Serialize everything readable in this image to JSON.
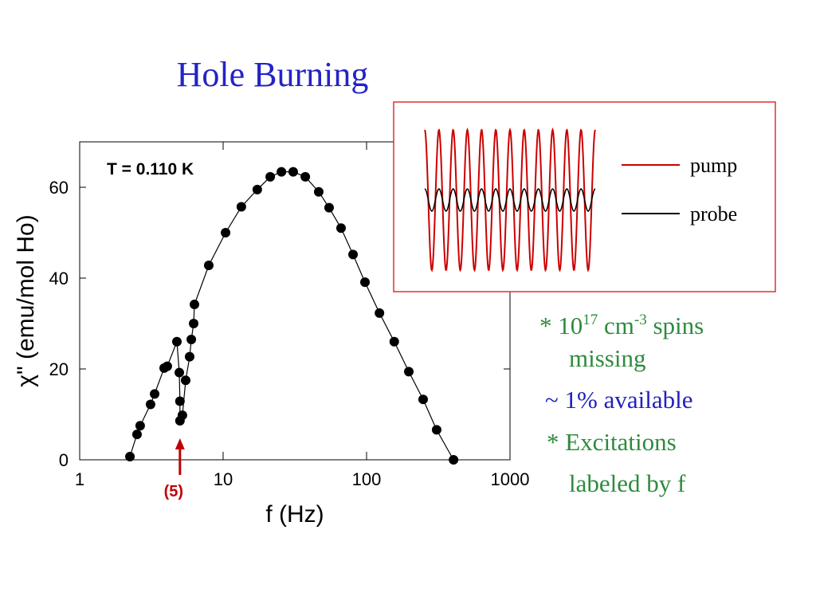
{
  "chart_data": {
    "type": "scatter",
    "title": "Hole Burning",
    "xlabel": "f (Hz)",
    "ylabel": "χ\" (emu/mol Ho)",
    "annotation": "T = 0.110 K",
    "xscale": "log",
    "xlim": [
      1,
      1000
    ],
    "xticks": [
      1,
      10,
      100,
      1000
    ],
    "ylim": [
      0,
      70
    ],
    "yticks": [
      0,
      20,
      40,
      60
    ],
    "color": "#000000",
    "x": [
      2.24,
      2.51,
      2.64,
      3.12,
      3.33,
      3.88,
      4.08,
      4.76,
      4.95,
      5.0,
      5.0,
      5.2,
      5.48,
      5.84,
      6.0,
      6.23,
      6.31,
      7.94,
      10.4,
      13.4,
      17.3,
      21.3,
      25.5,
      30.8,
      37.4,
      46.4,
      54.8,
      66.4,
      80.5,
      97.5,
      123,
      156,
      197,
      248,
      308,
      404
    ],
    "values": [
      0.7,
      5.6,
      7.5,
      12.2,
      14.5,
      20.2,
      20.6,
      26,
      19.2,
      12.9,
      8.6,
      9.8,
      17.5,
      22.7,
      26.5,
      30,
      34.2,
      42.8,
      50,
      55.7,
      59.5,
      62.3,
      63.4,
      63.4,
      62.3,
      59,
      55.5,
      51,
      45.2,
      39.1,
      32.3,
      26,
      19.4,
      13.3,
      6.6,
      0
    ],
    "marker": {
      "label": "(5)",
      "x": 5,
      "color": "#c00000"
    }
  },
  "inset": {
    "legend": [
      {
        "name": "pump",
        "color": "#cc0000"
      },
      {
        "name": "probe",
        "color": "#000000"
      }
    ]
  },
  "notes": {
    "line1": [
      "* 10",
      "17",
      " cm",
      "-3",
      " spins"
    ],
    "line2": "missing",
    "line3": "~ 1% available",
    "line4": "* Excitations",
    "line5": "labeled by f"
  }
}
